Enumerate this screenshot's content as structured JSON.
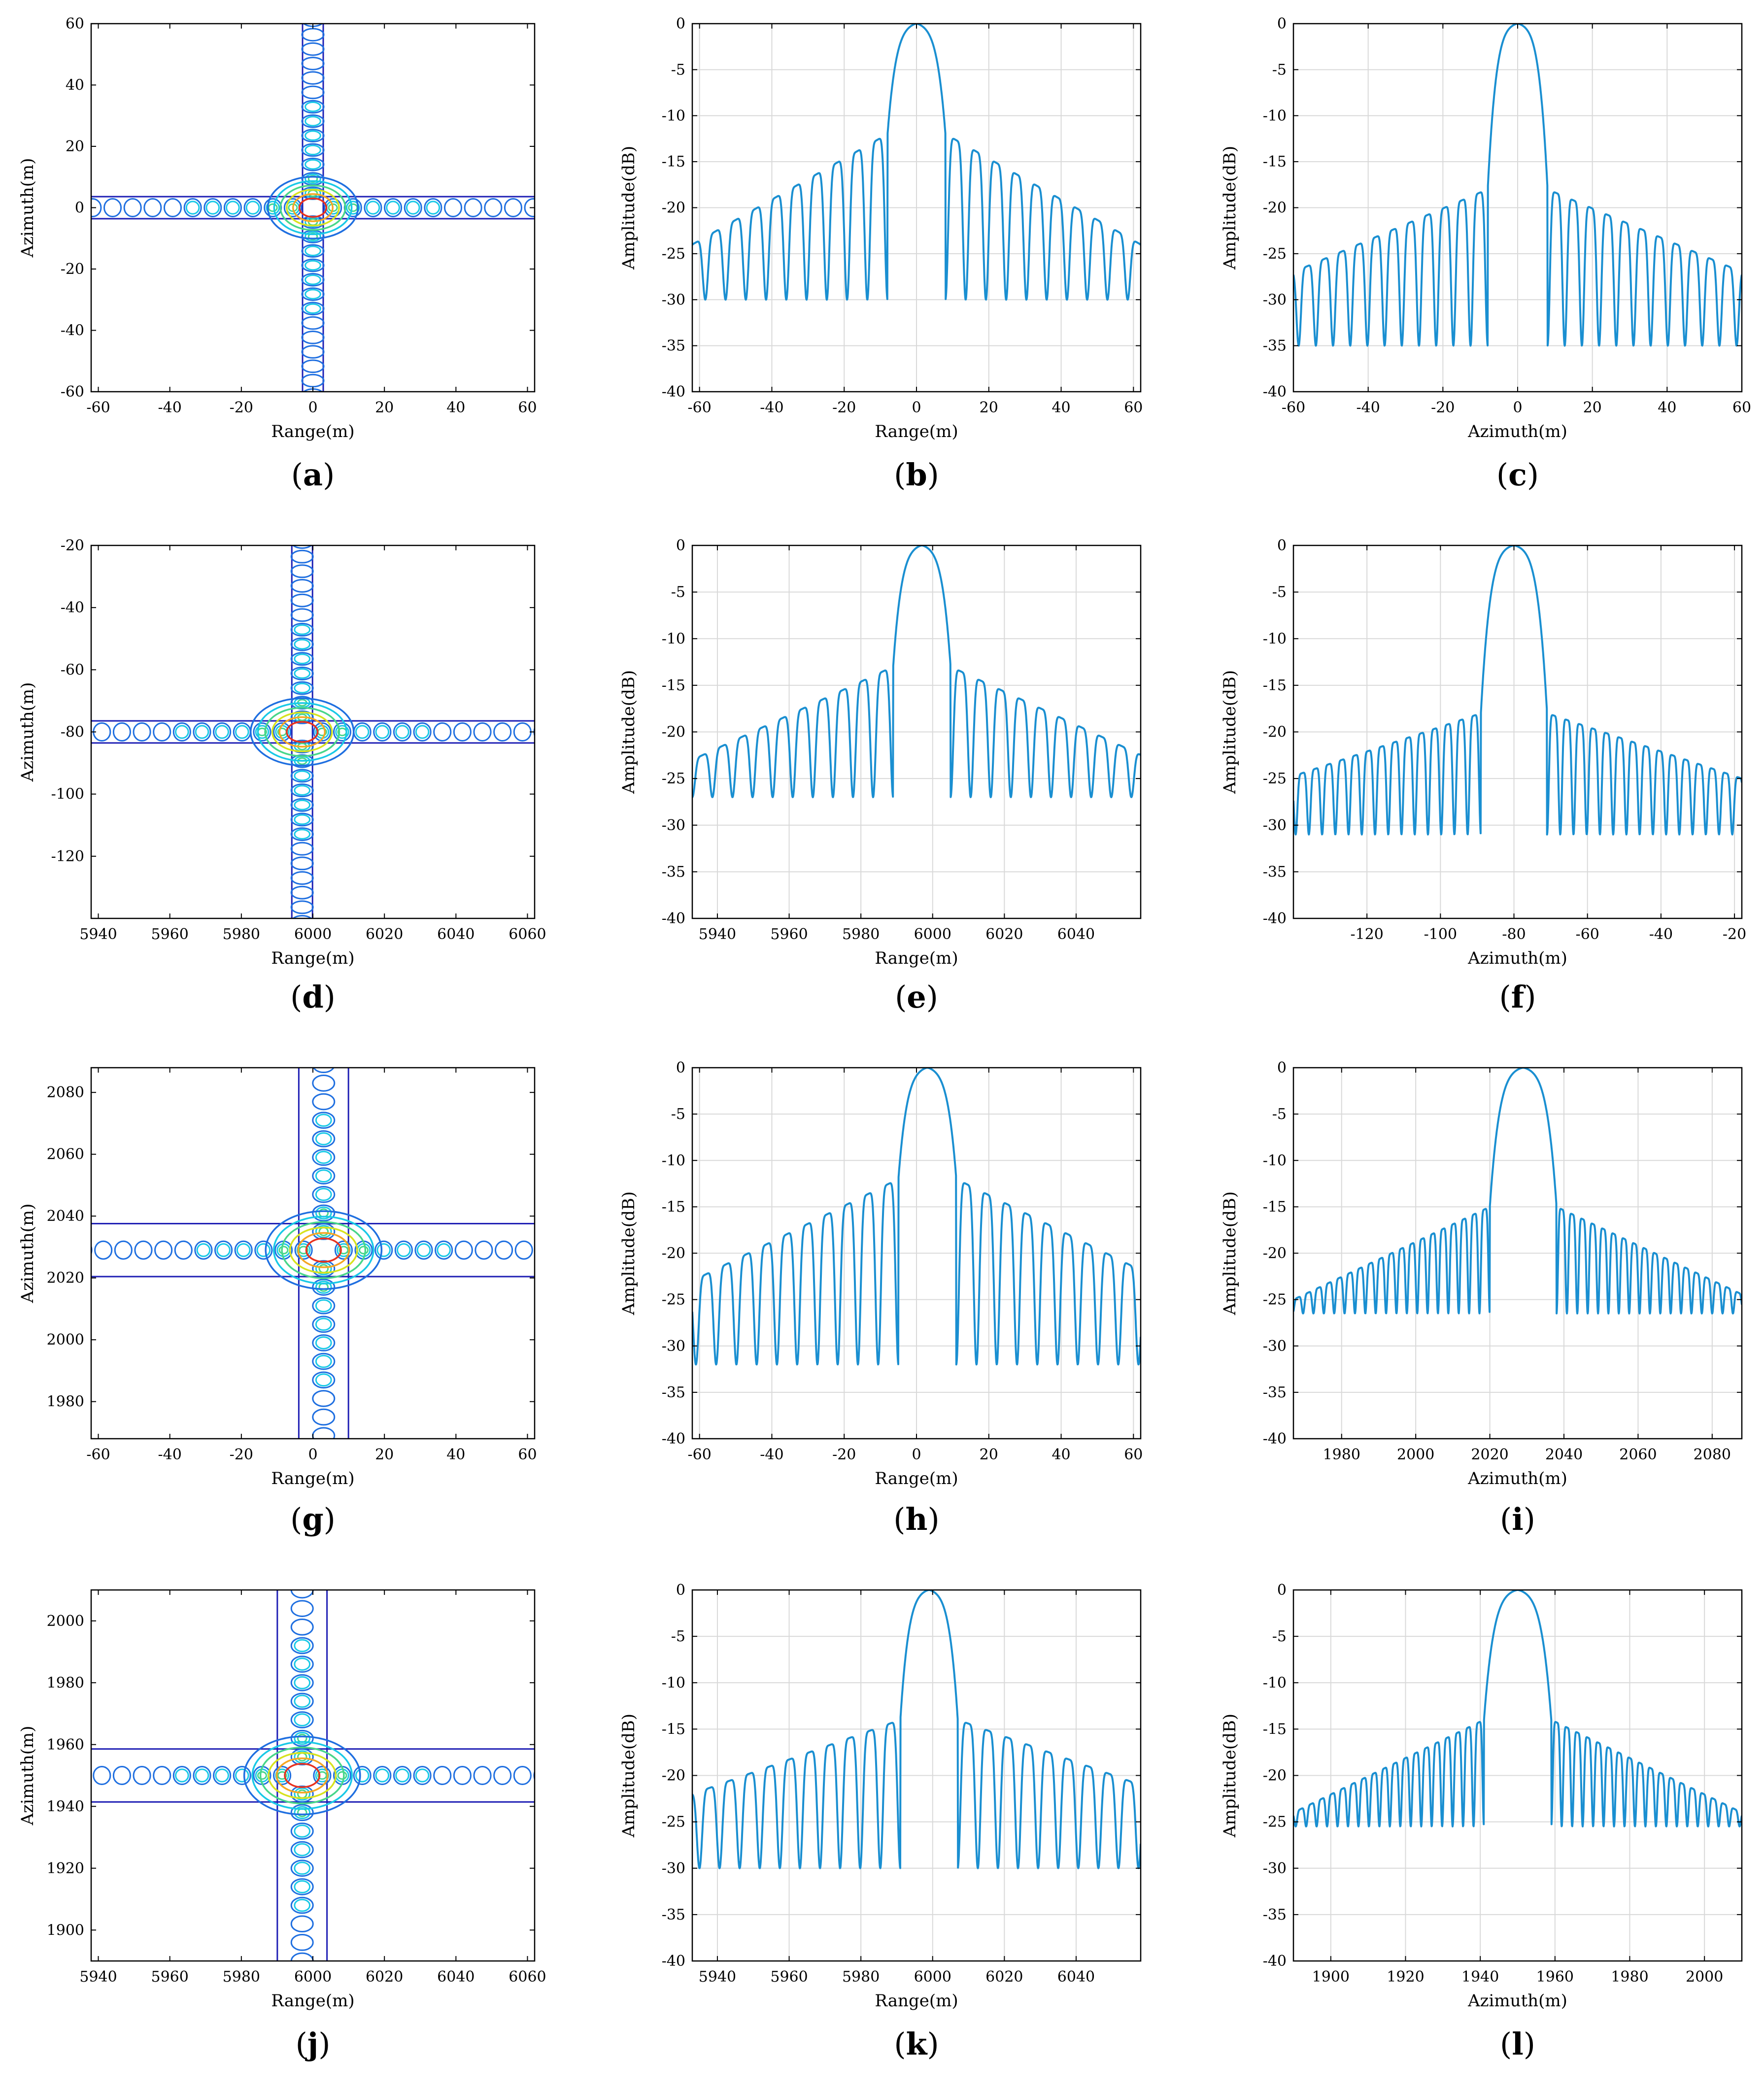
{
  "figure": {
    "caption_parens": {
      "open": "(",
      "close": ")"
    },
    "colors": {
      "profile_line": "#1a8fd1",
      "grid": "#d9d9d9",
      "axes": "#000000",
      "contour_levels": [
        "#1f1fb4",
        "#1f6fe0",
        "#19c9e6",
        "#48d68a",
        "#d7e21e",
        "#f5a623",
        "#e8321e"
      ]
    }
  },
  "chart_data": [
    {
      "id": "a",
      "caption": "a",
      "type": "contour",
      "title": "",
      "xlabel": "Range(m)",
      "ylabel": "Azimuth(m)",
      "xlim": [
        -62,
        62
      ],
      "ylim": [
        -60,
        60
      ],
      "xticks": [
        -60,
        -40,
        -20,
        0,
        20,
        40,
        60
      ],
      "yticks": [
        -60,
        -40,
        -20,
        0,
        20,
        40,
        60
      ],
      "peak": {
        "x": 0,
        "y": 0
      },
      "sidelobe_spacing": {
        "x": 5.6,
        "y": 4.7
      },
      "main_lobe_width": {
        "x": 3.5,
        "y": 2.8
      },
      "grid": false,
      "arms": "narrow"
    },
    {
      "id": "b",
      "caption": "b",
      "type": "line",
      "title": "",
      "xlabel": "Range(m)",
      "ylabel": "Amplitude(dB)",
      "xlim": [
        -62,
        62
      ],
      "ylim": [
        -40,
        0
      ],
      "xticks": [
        -60,
        -40,
        -20,
        0,
        20,
        40,
        60
      ],
      "yticks": [
        0,
        -5,
        -10,
        -15,
        -20,
        -25,
        -30,
        -35,
        -40
      ],
      "peak": 0,
      "mainlobe_halfwidth": 8,
      "sidelobe_spacing": 5.6,
      "first_sidelobe_db": -12,
      "floor_db": -24,
      "null_db": -30,
      "grid": true
    },
    {
      "id": "c",
      "caption": "c",
      "type": "line",
      "title": "",
      "xlabel": "Azimuth(m)",
      "ylabel": "Amplitude(dB)",
      "xlim": [
        -60,
        60
      ],
      "ylim": [
        -40,
        0
      ],
      "xticks": [
        -60,
        -40,
        -20,
        0,
        20,
        40,
        60
      ],
      "yticks": [
        0,
        -5,
        -10,
        -15,
        -20,
        -25,
        -30,
        -35,
        -40
      ],
      "peak": 0,
      "mainlobe_halfwidth": 8,
      "sidelobe_spacing": 4.6,
      "first_sidelobe_db": -18,
      "floor_db": -27,
      "null_db": -35,
      "grid": true
    },
    {
      "id": "d",
      "caption": "d",
      "type": "contour",
      "title": "",
      "xlabel": "Range(m)",
      "ylabel": "Azimuth(m)",
      "xlim": [
        5938,
        6062
      ],
      "ylim": [
        -140,
        -20
      ],
      "xticks": [
        5940,
        5960,
        5980,
        6000,
        6020,
        6040,
        6060
      ],
      "yticks": [
        -120,
        -100,
        -80,
        -60,
        -40,
        -20
      ],
      "peak": {
        "x": 5997,
        "y": -80
      },
      "sidelobe_spacing": {
        "x": 5.6,
        "y": 4.7
      },
      "main_lobe_width": {
        "x": 4.0,
        "y": 3.0
      },
      "grid": false,
      "arms": "narrow"
    },
    {
      "id": "e",
      "caption": "e",
      "type": "line",
      "title": "",
      "xlabel": "Range(m)",
      "ylabel": "Amplitude(dB)",
      "xlim": [
        5933,
        6058
      ],
      "ylim": [
        -40,
        0
      ],
      "xticks": [
        5940,
        5960,
        5980,
        6000,
        6020,
        6040
      ],
      "yticks": [
        0,
        -5,
        -10,
        -15,
        -20,
        -25,
        -30,
        -35,
        -40
      ],
      "peak": 5997,
      "mainlobe_halfwidth": 8,
      "sidelobe_spacing": 5.6,
      "first_sidelobe_db": -13,
      "floor_db": -23,
      "null_db": -27,
      "grid": true
    },
    {
      "id": "f",
      "caption": "f",
      "type": "line",
      "title": "",
      "xlabel": "Azimuth(m)",
      "ylabel": "Amplitude(dB)",
      "xlim": [
        -140,
        -18
      ],
      "ylim": [
        -40,
        0
      ],
      "xticks": [
        -120,
        -100,
        -80,
        -60,
        -40,
        -20
      ],
      "yticks": [
        0,
        -5,
        -10,
        -15,
        -20,
        -25,
        -30,
        -35,
        -40
      ],
      "peak": -80,
      "mainlobe_halfwidth": 9,
      "sidelobe_spacing": 3.6,
      "first_sidelobe_db": -18,
      "floor_db": -25,
      "null_db": -31,
      "grid": true
    },
    {
      "id": "g",
      "caption": "g",
      "type": "contour",
      "title": "",
      "xlabel": "Range(m)",
      "ylabel": "Azimuth(m)",
      "xlim": [
        -62,
        62
      ],
      "ylim": [
        1968,
        2088
      ],
      "xticks": [
        -60,
        -40,
        -20,
        0,
        20,
        40,
        60
      ],
      "yticks": [
        1980,
        2000,
        2020,
        2040,
        2060,
        2080
      ],
      "peak": {
        "x": 3,
        "y": 2029
      },
      "sidelobe_spacing": {
        "x": 5.6,
        "y": 6.0
      },
      "main_lobe_width": {
        "x": 4.5,
        "y": 3.5
      },
      "grid": false,
      "arms": "wide"
    },
    {
      "id": "h",
      "caption": "h",
      "type": "line",
      "title": "",
      "xlabel": "Range(m)",
      "ylabel": "Amplitude(dB)",
      "xlim": [
        -62,
        62
      ],
      "ylim": [
        -40,
        0
      ],
      "xticks": [
        -60,
        -40,
        -20,
        0,
        20,
        40,
        60
      ],
      "yticks": [
        0,
        -5,
        -10,
        -15,
        -20,
        -25,
        -30,
        -35,
        -40
      ],
      "peak": 3,
      "mainlobe_halfwidth": 8,
      "sidelobe_spacing": 5.6,
      "first_sidelobe_db": -12,
      "floor_db": -23,
      "null_db": -32,
      "grid": true
    },
    {
      "id": "i",
      "caption": "i",
      "type": "line",
      "title": "",
      "xlabel": "Azimuth(m)",
      "ylabel": "Amplitude(dB)",
      "xlim": [
        1967,
        2088
      ],
      "ylim": [
        -40,
        0
      ],
      "xticks": [
        1980,
        2000,
        2020,
        2040,
        2060,
        2080
      ],
      "yticks": [
        0,
        -5,
        -10,
        -15,
        -20,
        -25,
        -30,
        -35,
        -40
      ],
      "peak": 2029,
      "mainlobe_halfwidth": 9,
      "sidelobe_spacing": 2.8,
      "first_sidelobe_db": -15,
      "floor_db": -25,
      "null_db": -26.5,
      "grid": true
    },
    {
      "id": "j",
      "caption": "j",
      "type": "contour",
      "title": "",
      "xlabel": "Range(m)",
      "ylabel": "Azimuth(m)",
      "xlim": [
        5938,
        6062
      ],
      "ylim": [
        1890,
        2010
      ],
      "xticks": [
        5940,
        5960,
        5980,
        6000,
        6020,
        6040,
        6060
      ],
      "yticks": [
        1900,
        1920,
        1940,
        1960,
        1980,
        2000
      ],
      "peak": {
        "x": 5997,
        "y": 1950
      },
      "sidelobe_spacing": {
        "x": 5.6,
        "y": 6.0
      },
      "main_lobe_width": {
        "x": 4.5,
        "y": 3.5
      },
      "grid": false,
      "arms": "wide"
    },
    {
      "id": "k",
      "caption": "k",
      "type": "line",
      "title": "",
      "xlabel": "Range(m)",
      "ylabel": "Amplitude(dB)",
      "xlim": [
        5933,
        6058
      ],
      "ylim": [
        -40,
        0
      ],
      "xticks": [
        5940,
        5960,
        5980,
        6000,
        6020,
        6040
      ],
      "yticks": [
        0,
        -5,
        -10,
        -15,
        -20,
        -25,
        -30,
        -35,
        -40
      ],
      "peak": 5999,
      "mainlobe_halfwidth": 8,
      "sidelobe_spacing": 5.6,
      "first_sidelobe_db": -14,
      "floor_db": -22,
      "null_db": -30,
      "grid": true
    },
    {
      "id": "l",
      "caption": "l",
      "type": "line",
      "title": "",
      "xlabel": "Azimuth(m)",
      "ylabel": "Amplitude(dB)",
      "xlim": [
        1890,
        2010
      ],
      "ylim": [
        -40,
        0
      ],
      "xticks": [
        1900,
        1920,
        1940,
        1960,
        1980,
        2000
      ],
      "yticks": [
        0,
        -5,
        -10,
        -15,
        -20,
        -25,
        -30,
        -35,
        -40
      ],
      "peak": 1950,
      "mainlobe_halfwidth": 9,
      "sidelobe_spacing": 2.8,
      "first_sidelobe_db": -14,
      "floor_db": -24,
      "null_db": -25.5,
      "grid": true
    }
  ]
}
